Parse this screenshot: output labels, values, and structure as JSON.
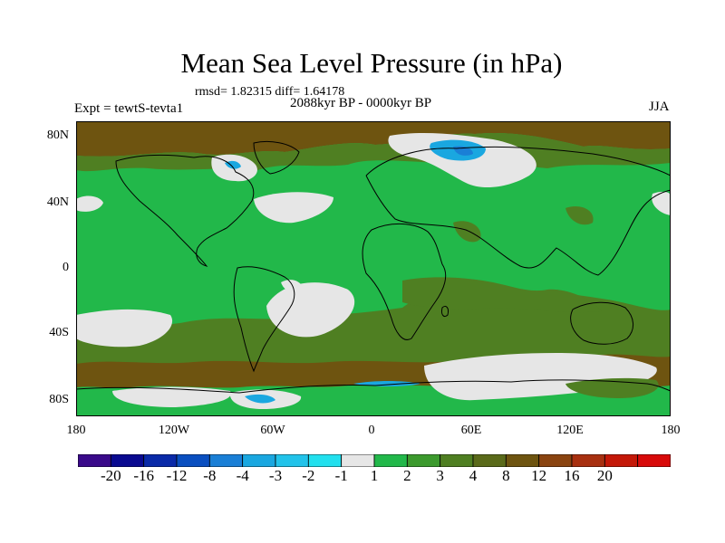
{
  "title": "Mean Sea Level Pressure (in hPa)",
  "stats": "rmsd= 1.82315 diff= 1.64178",
  "experiment": "Expt = tewtS-tevta1",
  "period": "2088kyr BP - 0000kyr BP",
  "season": "JJA",
  "lat_labels": [
    "80N",
    "40N",
    "0",
    "40S",
    "80S"
  ],
  "lon_labels": [
    "180",
    "120W",
    "60W",
    "0",
    "60E",
    "120E",
    "180"
  ],
  "colorbar": {
    "colors": [
      "#3a0a8a",
      "#0a0a90",
      "#0a2aa8",
      "#0a4fc0",
      "#1a7fd6",
      "#1aa7e0",
      "#22c3ea",
      "#22e0ee",
      "#e6e6e6",
      "#22b84a",
      "#3c9a2e",
      "#4f7f22",
      "#5a6a1a",
      "#6e5410",
      "#8a4410",
      "#a83010",
      "#c41808",
      "#d80a0a"
    ],
    "labels": [
      "-20",
      "-16",
      "-12",
      "-8",
      "-4",
      "-3",
      "-2",
      "-1",
      "1",
      "2",
      "3",
      "4",
      "8",
      "12",
      "16",
      "20"
    ]
  },
  "map_colors": {
    "ocean_green": "#22b84a",
    "dark_green": "#4f7f22",
    "brown": "#6e5410",
    "grey": "#e6e6e6",
    "blue": "#1aa7e0",
    "deep_blue": "#1a7fd6"
  }
}
